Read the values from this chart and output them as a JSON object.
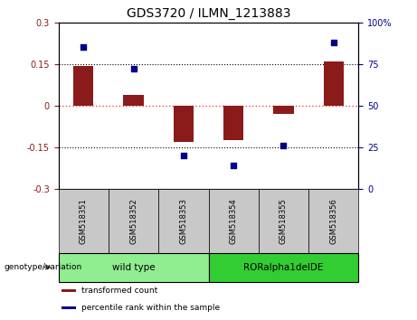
{
  "title": "GDS3720 / ILMN_1213883",
  "samples": [
    "GSM518351",
    "GSM518352",
    "GSM518353",
    "GSM518354",
    "GSM518355",
    "GSM518356"
  ],
  "bar_values": [
    0.143,
    0.04,
    -0.13,
    -0.125,
    -0.03,
    0.16
  ],
  "scatter_values": [
    85,
    72,
    20,
    14,
    26,
    88
  ],
  "ylim_left": [
    -0.3,
    0.3
  ],
  "ylim_right": [
    0,
    100
  ],
  "yticks_left": [
    -0.3,
    -0.15,
    0,
    0.15,
    0.3
  ],
  "yticks_right": [
    0,
    25,
    50,
    75,
    100
  ],
  "bar_color": "#8B1A1A",
  "scatter_color": "#00008B",
  "hline_color": "#FF4444",
  "grid_hlines": [
    -0.15,
    0.15
  ],
  "groups": [
    {
      "label": "wild type",
      "samples": [
        0,
        1,
        2
      ],
      "color": "#90EE90"
    },
    {
      "label": "RORalpha1delDE",
      "samples": [
        3,
        4,
        5
      ],
      "color": "#32CD32"
    }
  ],
  "group_label": "genotype/variation",
  "legend_items": [
    {
      "label": "transformed count",
      "color": "#8B1A1A"
    },
    {
      "label": "percentile rank within the sample",
      "color": "#00008B"
    }
  ],
  "xlabel_bg_color": "#C8C8C8",
  "title_fontsize": 10,
  "tick_fontsize": 7,
  "label_fontsize": 7,
  "bar_width": 0.4
}
